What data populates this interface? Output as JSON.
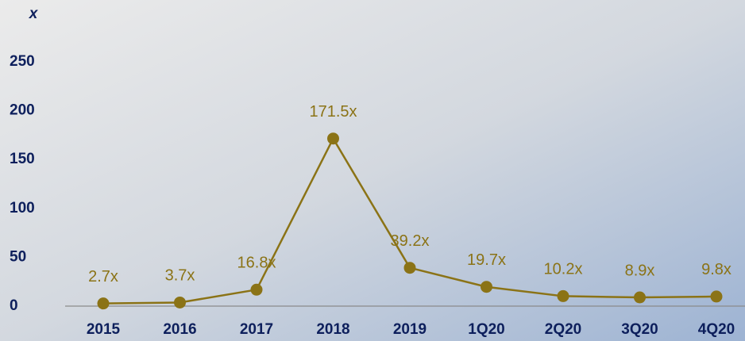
{
  "chart_data": {
    "type": "line",
    "y_label": "x",
    "categories": [
      "2015",
      "2016",
      "2017",
      "2018",
      "2019",
      "1Q20",
      "2Q20",
      "3Q20",
      "4Q20"
    ],
    "values": [
      2.7,
      3.7,
      16.8,
      171.5,
      39.2,
      19.7,
      10.2,
      8.9,
      9.8
    ],
    "value_labels": [
      "2.7x",
      "3.7x",
      "16.8x",
      "171.5x",
      "39.2x",
      "19.7x",
      "10.2x",
      "8.9x",
      "9.8x"
    ],
    "color": "#8b7316",
    "ylim": [
      0,
      250
    ],
    "yticks": [
      0,
      50,
      100,
      150,
      200,
      250
    ],
    "grid": false
  }
}
